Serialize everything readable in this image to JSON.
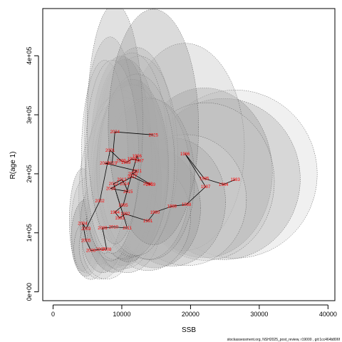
{
  "chart_data": {
    "type": "scatter",
    "xlabel": "SSB",
    "ylabel": "R(age 1)",
    "xlim": [
      -1500,
      41000
    ],
    "ylim": [
      -15000,
      480000
    ],
    "x_ticks": [
      0,
      10000,
      20000,
      30000,
      40000
    ],
    "x_tick_labels": [
      "0",
      "10000",
      "20000",
      "30000",
      "40000"
    ],
    "y_ticks": [
      0,
      100000,
      200000,
      300000,
      400000
    ],
    "y_tick_labels": [
      "0e+00",
      "1e+05",
      "2e+05",
      "3e+05",
      "4e+05"
    ],
    "grid": false,
    "point_color": "#ff0000",
    "path_color": "#000000",
    "points": [
      {
        "year": "1983",
        "x": 26500,
        "y": 190000
      },
      {
        "year": "1984",
        "x": 24800,
        "y": 182000
      },
      {
        "year": "1985",
        "x": 22000,
        "y": 192000
      },
      {
        "year": "1986",
        "x": 19200,
        "y": 234000
      },
      {
        "year": "1987",
        "x": 22200,
        "y": 178000
      },
      {
        "year": "1988",
        "x": 19400,
        "y": 148000
      },
      {
        "year": "1989",
        "x": 17300,
        "y": 145000
      },
      {
        "year": "1990",
        "x": 14800,
        "y": 135000
      },
      {
        "year": "1991",
        "x": 13800,
        "y": 120000
      },
      {
        "year": "1992",
        "x": 10500,
        "y": 132000
      },
      {
        "year": "1993",
        "x": 9700,
        "y": 125000
      },
      {
        "year": "1994",
        "x": 9000,
        "y": 135000
      },
      {
        "year": "1995",
        "x": 10200,
        "y": 147000
      },
      {
        "year": "1996",
        "x": 12200,
        "y": 230000
      },
      {
        "year": "1997",
        "x": 12500,
        "y": 222000
      },
      {
        "year": "1998",
        "x": 11500,
        "y": 225000
      },
      {
        "year": "1999",
        "x": 10600,
        "y": 219000
      },
      {
        "year": "2000",
        "x": 9900,
        "y": 222000
      },
      {
        "year": "2001",
        "x": 8300,
        "y": 240000
      },
      {
        "year": "2002",
        "x": 6800,
        "y": 154000
      },
      {
        "year": "2003",
        "x": 4800,
        "y": 107000
      },
      {
        "year": "2004",
        "x": 4300,
        "y": 116000
      },
      {
        "year": "2005",
        "x": 4800,
        "y": 87000
      },
      {
        "year": "2006",
        "x": 5500,
        "y": 70000
      },
      {
        "year": "2007",
        "x": 6900,
        "y": 72000
      },
      {
        "year": "2008",
        "x": 7800,
        "y": 72000
      },
      {
        "year": "2009",
        "x": 7200,
        "y": 108000
      },
      {
        "year": "2010",
        "x": 8800,
        "y": 110000
      },
      {
        "year": "2011",
        "x": 10800,
        "y": 108000
      },
      {
        "year": "2012",
        "x": 8800,
        "y": 183000
      },
      {
        "year": "2013",
        "x": 10000,
        "y": 190000
      },
      {
        "year": "2014",
        "x": 10400,
        "y": 183000
      },
      {
        "year": "2015",
        "x": 10900,
        "y": 170000
      },
      {
        "year": "2016",
        "x": 8400,
        "y": 175000
      },
      {
        "year": "2017",
        "x": 11500,
        "y": 195000
      },
      {
        "year": "2018",
        "x": 13800,
        "y": 183000
      },
      {
        "year": "2019",
        "x": 14200,
        "y": 182000
      },
      {
        "year": "2020",
        "x": 11600,
        "y": 200000
      },
      {
        "year": "2021",
        "x": 12200,
        "y": 205000
      },
      {
        "year": "2022",
        "x": 7500,
        "y": 218000
      },
      {
        "year": "2023",
        "x": 8600,
        "y": 218000
      },
      {
        "year": "2024",
        "x": 9000,
        "y": 271000
      },
      {
        "year": "2025",
        "x": 14600,
        "y": 266000
      }
    ],
    "path_order": [
      "1983",
      "1984",
      "1985",
      "1986",
      "1987",
      "1988",
      "1989",
      "1990",
      "1991",
      "1992",
      "1993",
      "1994",
      "1995",
      "1996",
      "1997",
      "1998",
      "1999",
      "2000",
      "2001",
      "2002",
      "2003",
      "2004",
      "2005",
      "2006",
      "2007",
      "2008",
      "2009",
      "2010",
      "2011",
      "2012",
      "2013",
      "2014",
      "2015",
      "2016",
      "2017",
      "2018",
      "2019",
      "2020",
      "2021",
      "2022",
      "2023",
      "2024",
      "2025"
    ]
  },
  "footer_text": "stockassessment.org, NSH2025_post_review, r19000 , git:1cc464b806f"
}
